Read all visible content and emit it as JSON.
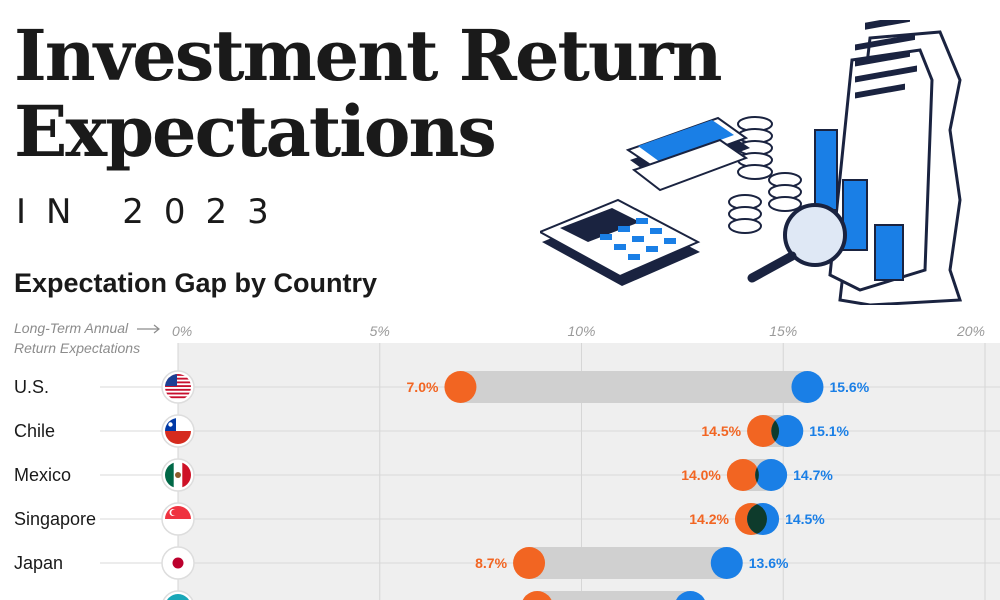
{
  "header": {
    "title_line1": "Investment Return",
    "title_line2": "Expectations",
    "subtitle": "IN 2023"
  },
  "section": {
    "title": "Expectation Gap by Country",
    "axis_caption_line1": "Long-Term Annual",
    "axis_caption_line2": "Return Expectations"
  },
  "colors": {
    "orange": "#f26522",
    "blue": "#1a7fe6",
    "band": "#d0d0d0",
    "panel": "#efefef",
    "overlap": "#0e3b2c",
    "tick": "#9a9a9a",
    "text": "#1a1a1a"
  },
  "chart_data": {
    "type": "dumbbell",
    "title": "Expectation Gap by Country",
    "xlabel": "Long-Term Annual Return Expectations",
    "xlim": [
      0,
      20
    ],
    "ticks": [
      "0%",
      "5%",
      "10%",
      "15%",
      "20%"
    ],
    "tick_values": [
      0,
      5,
      10,
      15,
      20
    ],
    "rows": [
      {
        "country": "U.S.",
        "flag": "us-flag-icon",
        "low": 7.0,
        "low_label": "7.0%",
        "high": 15.6,
        "high_label": "15.6%"
      },
      {
        "country": "Chile",
        "flag": "chile-flag-icon",
        "low": 14.5,
        "low_label": "14.5%",
        "high": 15.1,
        "high_label": "15.1%"
      },
      {
        "country": "Mexico",
        "flag": "mexico-flag-icon",
        "low": 14.0,
        "low_label": "14.0%",
        "high": 14.7,
        "high_label": "14.7%"
      },
      {
        "country": "Singapore",
        "flag": "singapore-flag-icon",
        "low": 14.2,
        "low_label": "14.2%",
        "high": 14.5,
        "high_label": "14.5%"
      },
      {
        "country": "Japan",
        "flag": "japan-flag-icon",
        "low": 8.7,
        "low_label": "8.7%",
        "high": 13.6,
        "high_label": "13.6%"
      },
      {
        "country": "",
        "flag": "partial-flag-icon",
        "low": 8.9,
        "low_label": "",
        "high": 12.7,
        "high_label": ""
      }
    ]
  }
}
